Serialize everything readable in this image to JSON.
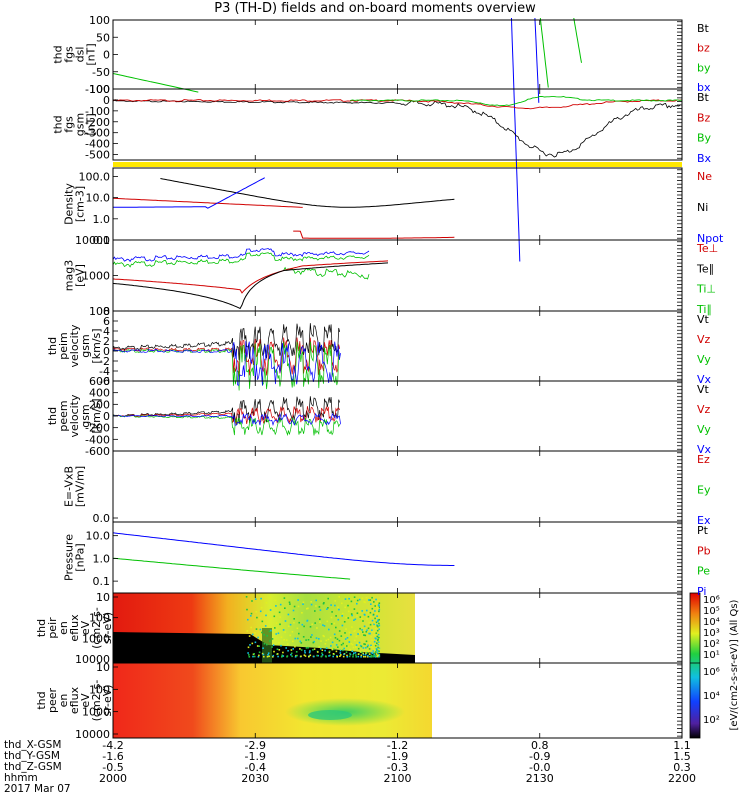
{
  "title": "P3 (TH-D) fields and on-board moments overview",
  "footer": {
    "rows": [
      {
        "label": "thd_X-GSM",
        "values": [
          "-4.2",
          "-2.9",
          "-1.2",
          "0.8",
          "1.1"
        ]
      },
      {
        "label": "thd_Y-GSM",
        "values": [
          "-1.6",
          "-1.9",
          "-1.9",
          "-0.9",
          "1.5"
        ]
      },
      {
        "label": "thd_Z-GSM",
        "values": [
          "-0.5",
          "-0.4",
          "-0.3",
          "-0.0",
          "0.3"
        ]
      },
      {
        "label": "hhmm",
        "values": [
          "2000",
          "2030",
          "2100",
          "2130",
          "2200"
        ]
      }
    ],
    "date": "2017 Mar 07"
  },
  "colorbar": {
    "label": "[eV/(cm2-s-sr-eV)] (All Qs)",
    "ticks": [
      "10⁶",
      "10⁵",
      "10⁴",
      "10³",
      "10²",
      "10¹"
    ],
    "ticks2": [
      "10⁶",
      "10⁴",
      "10²"
    ]
  },
  "chart_data": [
    {
      "type": "line",
      "panel": "fgs-dsl",
      "ylabel": [
        "thd",
        "fgs",
        "dsl",
        "[nT]"
      ],
      "yticks": [
        "100",
        "50",
        "0",
        "-50",
        "-100"
      ],
      "ylim": [
        -100,
        100
      ],
      "legend": [
        {
          "name": "Bt",
          "color": "#000000"
        },
        {
          "name": "bz",
          "color": "#d00000"
        },
        {
          "name": "by",
          "color": "#00c000"
        },
        {
          "name": "bx",
          "color": "#0000ff"
        }
      ]
    },
    {
      "type": "line",
      "panel": "fgs-gsm",
      "ylabel": [
        "thd",
        "fgs",
        "gsm",
        "[nT]"
      ],
      "yticks": [
        "100",
        "0",
        "-100",
        "-200",
        "-300",
        "-400",
        "-500"
      ],
      "ylim": [
        -550,
        100
      ],
      "legend": [
        {
          "name": "Bt",
          "color": "#000000"
        },
        {
          "name": "Bz",
          "color": "#d00000"
        },
        {
          "name": "By",
          "color": "#00c000"
        },
        {
          "name": "Bx",
          "color": "#0000ff"
        }
      ]
    },
    {
      "type": "line",
      "panel": "density",
      "ylabel": [
        "Density",
        "[cm-3]"
      ],
      "yscale": "log",
      "yticks": [
        "100.0",
        "10.0",
        "1.0",
        "0.1"
      ],
      "ylim": [
        0.1,
        250
      ],
      "legend": [
        {
          "name": "Ne",
          "color": "#d00000"
        },
        {
          "name": "Ni",
          "color": "#000000"
        },
        {
          "name": "Npot",
          "color": "#0000ff"
        }
      ]
    },
    {
      "type": "line",
      "panel": "temperature",
      "ylabel": [
        "mag3",
        "[eV]"
      ],
      "yscale": "log",
      "yticks": [
        "10000",
        "1000",
        "100"
      ],
      "ylim": [
        100,
        10000
      ],
      "legend": [
        {
          "name": "Te⊥",
          "color": "#d00000"
        },
        {
          "name": "Te∥",
          "color": "#000000"
        },
        {
          "name": "Ti⊥",
          "color": "#00c000"
        },
        {
          "name": "Ti∥",
          "color": "#00c000"
        }
      ]
    },
    {
      "type": "line",
      "panel": "ion-velocity",
      "ylabel": [
        "thd",
        "peim",
        "velocity",
        "gsm",
        "[km/s]"
      ],
      "yticks": [
        "8",
        "6",
        "4",
        "2",
        "0",
        "-2",
        "-4",
        "-6"
      ],
      "ylim": [
        -6,
        8
      ],
      "legend": [
        {
          "name": "Vt",
          "color": "#000000"
        },
        {
          "name": "Vz",
          "color": "#d00000"
        },
        {
          "name": "Vy",
          "color": "#00c000"
        },
        {
          "name": "Vx",
          "color": "#0000ff"
        }
      ]
    },
    {
      "type": "line",
      "panel": "electron-velocity",
      "ylabel": [
        "thd",
        "peem",
        "velocity",
        "gsm",
        "[km/s]"
      ],
      "yticks": [
        "600",
        "400",
        "200",
        "0",
        "-200",
        "-400",
        "-600"
      ],
      "ylim": [
        -600,
        600
      ],
      "legend": [
        {
          "name": "Vt",
          "color": "#000000"
        },
        {
          "name": "Vz",
          "color": "#d00000"
        },
        {
          "name": "Vy",
          "color": "#00c000"
        },
        {
          "name": "Vx",
          "color": "#0000ff"
        }
      ]
    },
    {
      "type": "line",
      "panel": "efield",
      "ylabel": [
        "E=-VxB",
        "[mV/m]"
      ],
      "yticks": [
        "0.0"
      ],
      "legend": [
        {
          "name": "Ez",
          "color": "#d00000"
        },
        {
          "name": "Ey",
          "color": "#00c000"
        },
        {
          "name": "Ex",
          "color": "#0000ff"
        }
      ]
    },
    {
      "type": "line",
      "panel": "pressure",
      "ylabel": [
        "Pressure",
        "[nPa]"
      ],
      "yscale": "log",
      "yticks": [
        "10.0",
        "1.0",
        "0.1"
      ],
      "ylim": [
        0.03,
        40
      ],
      "legend": [
        {
          "name": "Pt",
          "color": "#000000"
        },
        {
          "name": "Pb",
          "color": "#d00000"
        },
        {
          "name": "Pe",
          "color": "#00c000"
        },
        {
          "name": "Pi",
          "color": "#0000ff"
        }
      ]
    },
    {
      "type": "heatmap",
      "panel": "ion-spectrogram",
      "ylabel": [
        "thd",
        "peir",
        "en",
        "eflux",
        "eV",
        "(cm2-s-",
        "sr-eV)"
      ],
      "yscale": "log",
      "yticks": [
        "10000",
        "1000",
        "100",
        "10"
      ]
    },
    {
      "type": "heatmap",
      "panel": "electron-spectrogram",
      "ylabel": [
        "thd",
        "peer",
        "en",
        "eflux",
        "eV",
        "(cm2-s-",
        "sr-eV)"
      ],
      "yscale": "log",
      "yticks": [
        "10000",
        "1000",
        "100",
        "10"
      ]
    }
  ]
}
